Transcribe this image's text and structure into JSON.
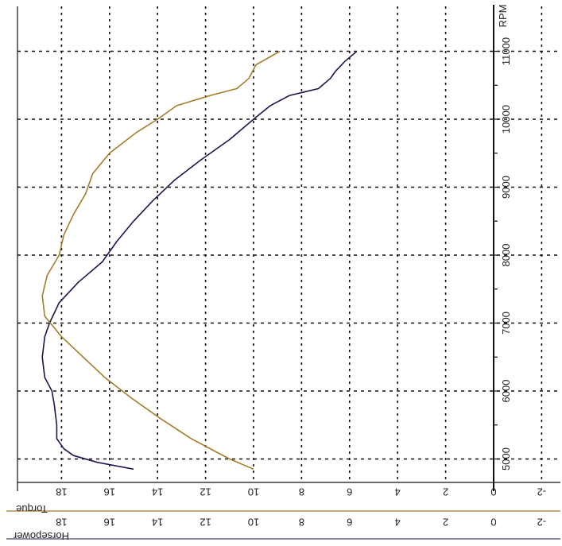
{
  "chart_data": {
    "type": "line",
    "orientation": "rotated-90-clockwise",
    "x_axis": {
      "label": "RPM",
      "ticks": [
        5000,
        6000,
        7000,
        8000,
        9000,
        10000,
        11000
      ],
      "range": [
        4700,
        11300
      ]
    },
    "y_axis_torque": {
      "label": "Torque",
      "ticks": [
        18,
        16,
        14,
        12,
        10,
        8,
        6,
        4,
        2,
        0,
        -2
      ],
      "range": [
        -3,
        20
      ]
    },
    "y_axis_horsepower": {
      "label": "Horsepower",
      "ticks": [
        18,
        16,
        14,
        12,
        10,
        8,
        6,
        4,
        2,
        0,
        -2
      ],
      "range": [
        -3,
        20
      ]
    },
    "grid": true,
    "series": [
      {
        "name": "Torque",
        "color": "#1a1550",
        "points": [
          [
            4850,
            15.0
          ],
          [
            4950,
            16.5
          ],
          [
            5050,
            17.5
          ],
          [
            5150,
            17.9
          ],
          [
            5300,
            18.2
          ],
          [
            5500,
            18.2
          ],
          [
            5800,
            18.3
          ],
          [
            6000,
            18.4
          ],
          [
            6200,
            18.7
          ],
          [
            6500,
            18.8
          ],
          [
            6800,
            18.7
          ],
          [
            7000,
            18.5
          ],
          [
            7300,
            18.1
          ],
          [
            7600,
            17.3
          ],
          [
            7900,
            16.3
          ],
          [
            8200,
            15.7
          ],
          [
            8500,
            15.0
          ],
          [
            8800,
            14.2
          ],
          [
            9100,
            13.3
          ],
          [
            9400,
            12.2
          ],
          [
            9700,
            11.0
          ],
          [
            10000,
            10.0
          ],
          [
            10200,
            9.3
          ],
          [
            10350,
            8.5
          ],
          [
            10450,
            7.3
          ],
          [
            10600,
            6.8
          ],
          [
            10700,
            6.6
          ],
          [
            10850,
            6.2
          ],
          [
            11000,
            5.7
          ]
        ]
      },
      {
        "name": "Horsepower",
        "color": "#a57c28",
        "points": [
          [
            4850,
            10.0
          ],
          [
            5000,
            11.0
          ],
          [
            5300,
            12.6
          ],
          [
            5600,
            13.9
          ],
          [
            5900,
            15.1
          ],
          [
            6200,
            16.2
          ],
          [
            6500,
            17.1
          ],
          [
            6800,
            18.0
          ],
          [
            7100,
            18.7
          ],
          [
            7400,
            18.8
          ],
          [
            7700,
            18.6
          ],
          [
            8000,
            18.1
          ],
          [
            8300,
            17.9
          ],
          [
            8600,
            17.5
          ],
          [
            8900,
            17.0
          ],
          [
            9200,
            16.7
          ],
          [
            9500,
            16.0
          ],
          [
            9800,
            14.9
          ],
          [
            10000,
            14.0
          ],
          [
            10200,
            13.2
          ],
          [
            10350,
            11.8
          ],
          [
            10450,
            10.7
          ],
          [
            10600,
            10.2
          ],
          [
            10800,
            9.9
          ],
          [
            11000,
            8.9
          ]
        ]
      }
    ]
  }
}
